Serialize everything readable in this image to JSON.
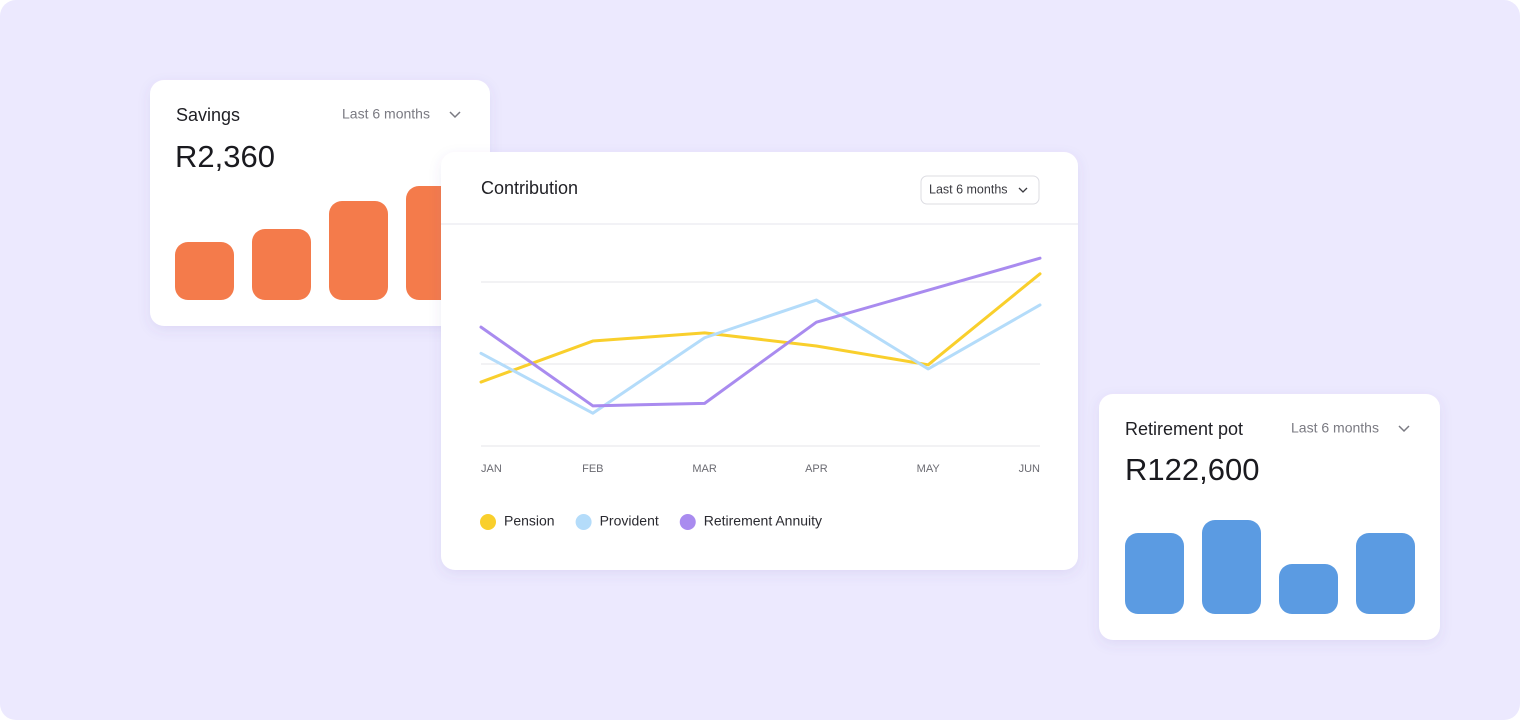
{
  "savings": {
    "title": "Savings",
    "filter": "Last 6 months",
    "amount": "R2,360",
    "chart_data": {
      "type": "bar",
      "values": [
        58,
        71,
        99,
        114
      ],
      "color": "#f47b4b",
      "ylim": [
        0,
        120
      ]
    }
  },
  "contribution": {
    "title": "Contribution",
    "filter": "Last 6 months",
    "chart_data": {
      "type": "line",
      "categories": [
        "JAN",
        "FEB",
        "MAR",
        "APR",
        "MAY",
        "JUN"
      ],
      "series": [
        {
          "name": "Pension",
          "color": "#f9cf2c",
          "values": [
            0.78,
            1.28,
            1.38,
            1.22,
            0.99,
            2.1
          ]
        },
        {
          "name": "Provident",
          "color": "#b4dcfa",
          "values": [
            1.13,
            0.4,
            1.32,
            1.78,
            0.94,
            1.72
          ]
        },
        {
          "name": "Retirement Annuity",
          "color": "#a98bef",
          "values": [
            1.45,
            0.49,
            0.52,
            1.51,
            1.9,
            2.29
          ]
        }
      ],
      "ylim": [
        0,
        3
      ],
      "yticks": [
        0,
        1,
        2
      ],
      "grid": true
    }
  },
  "retirement": {
    "title": "Retirement pot",
    "filter": "Last 6 months",
    "amount": "R122,600",
    "chart_data": {
      "type": "bar",
      "values": [
        81,
        94,
        50,
        81
      ],
      "color": "#5b9be2",
      "ylim": [
        0,
        100
      ]
    }
  }
}
